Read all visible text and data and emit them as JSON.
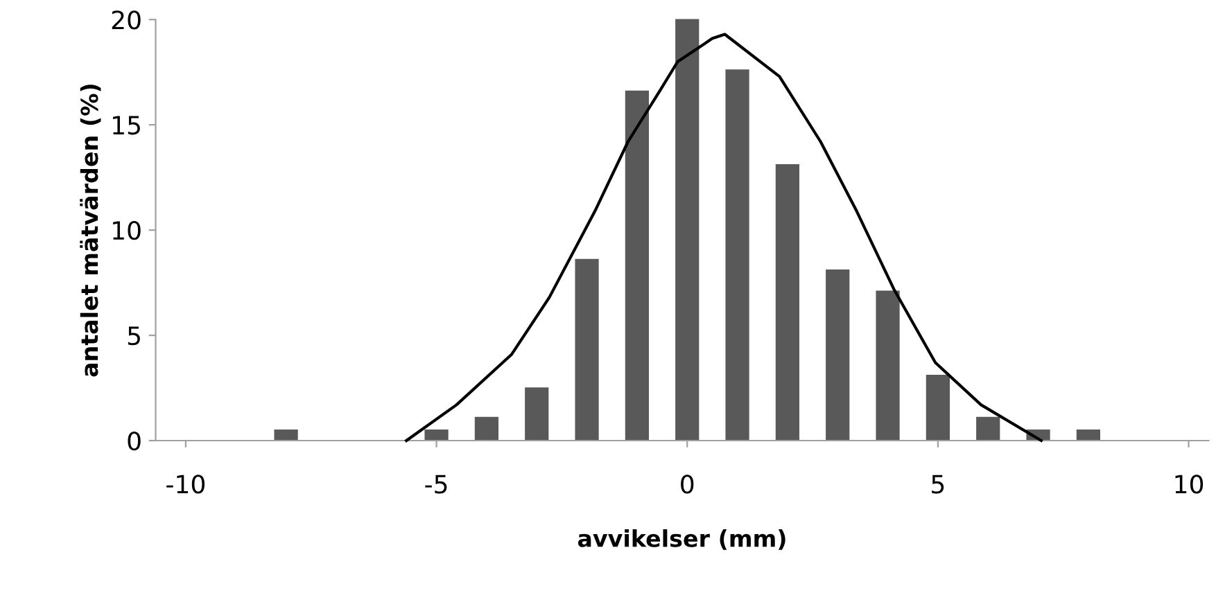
{
  "chart_data": {
    "type": "bar",
    "xlabel": "avvikelser (mm)",
    "ylabel": "antalet mätvärden (%)",
    "x": [
      -10,
      -9,
      -8,
      -7,
      -6,
      -5,
      -4,
      -3,
      -2,
      -1,
      0,
      1,
      2,
      3,
      4,
      5,
      6,
      7,
      8,
      9,
      10
    ],
    "series": [
      {
        "color": "#595959",
        "values": [
          0,
          0,
          0.5,
          0,
          0,
          0.5,
          1.1,
          2.5,
          8.6,
          16.6,
          20,
          17.6,
          13.1,
          8.1,
          7.1,
          3.1,
          1.1,
          0.5,
          0.5,
          0,
          0
        ]
      },
      {
        "type": "line",
        "color": "#000000",
        "x": [
          -5.6,
          -4.6,
          -3.5,
          -2.75,
          -1.84,
          -1.18,
          -0.55,
          -0.19,
          0.5,
          0.75,
          1.84,
          2.66,
          3.38,
          4.12,
          4.95,
          5.86,
          7.06
        ],
        "values": [
          0,
          1.7,
          4.1,
          6.8,
          10.9,
          14.2,
          16.6,
          18.0,
          19.1,
          19.3,
          17.3,
          14.2,
          10.9,
          7.2,
          3.7,
          1.7,
          0
        ]
      }
    ],
    "xlim": [
      -10.6,
      10.4
    ],
    "xticks": [
      -10,
      -5,
      0,
      5,
      10
    ],
    "ylim": [
      0,
      20
    ],
    "yticks": [
      0,
      5,
      10,
      15,
      20
    ],
    "grid": false
  }
}
